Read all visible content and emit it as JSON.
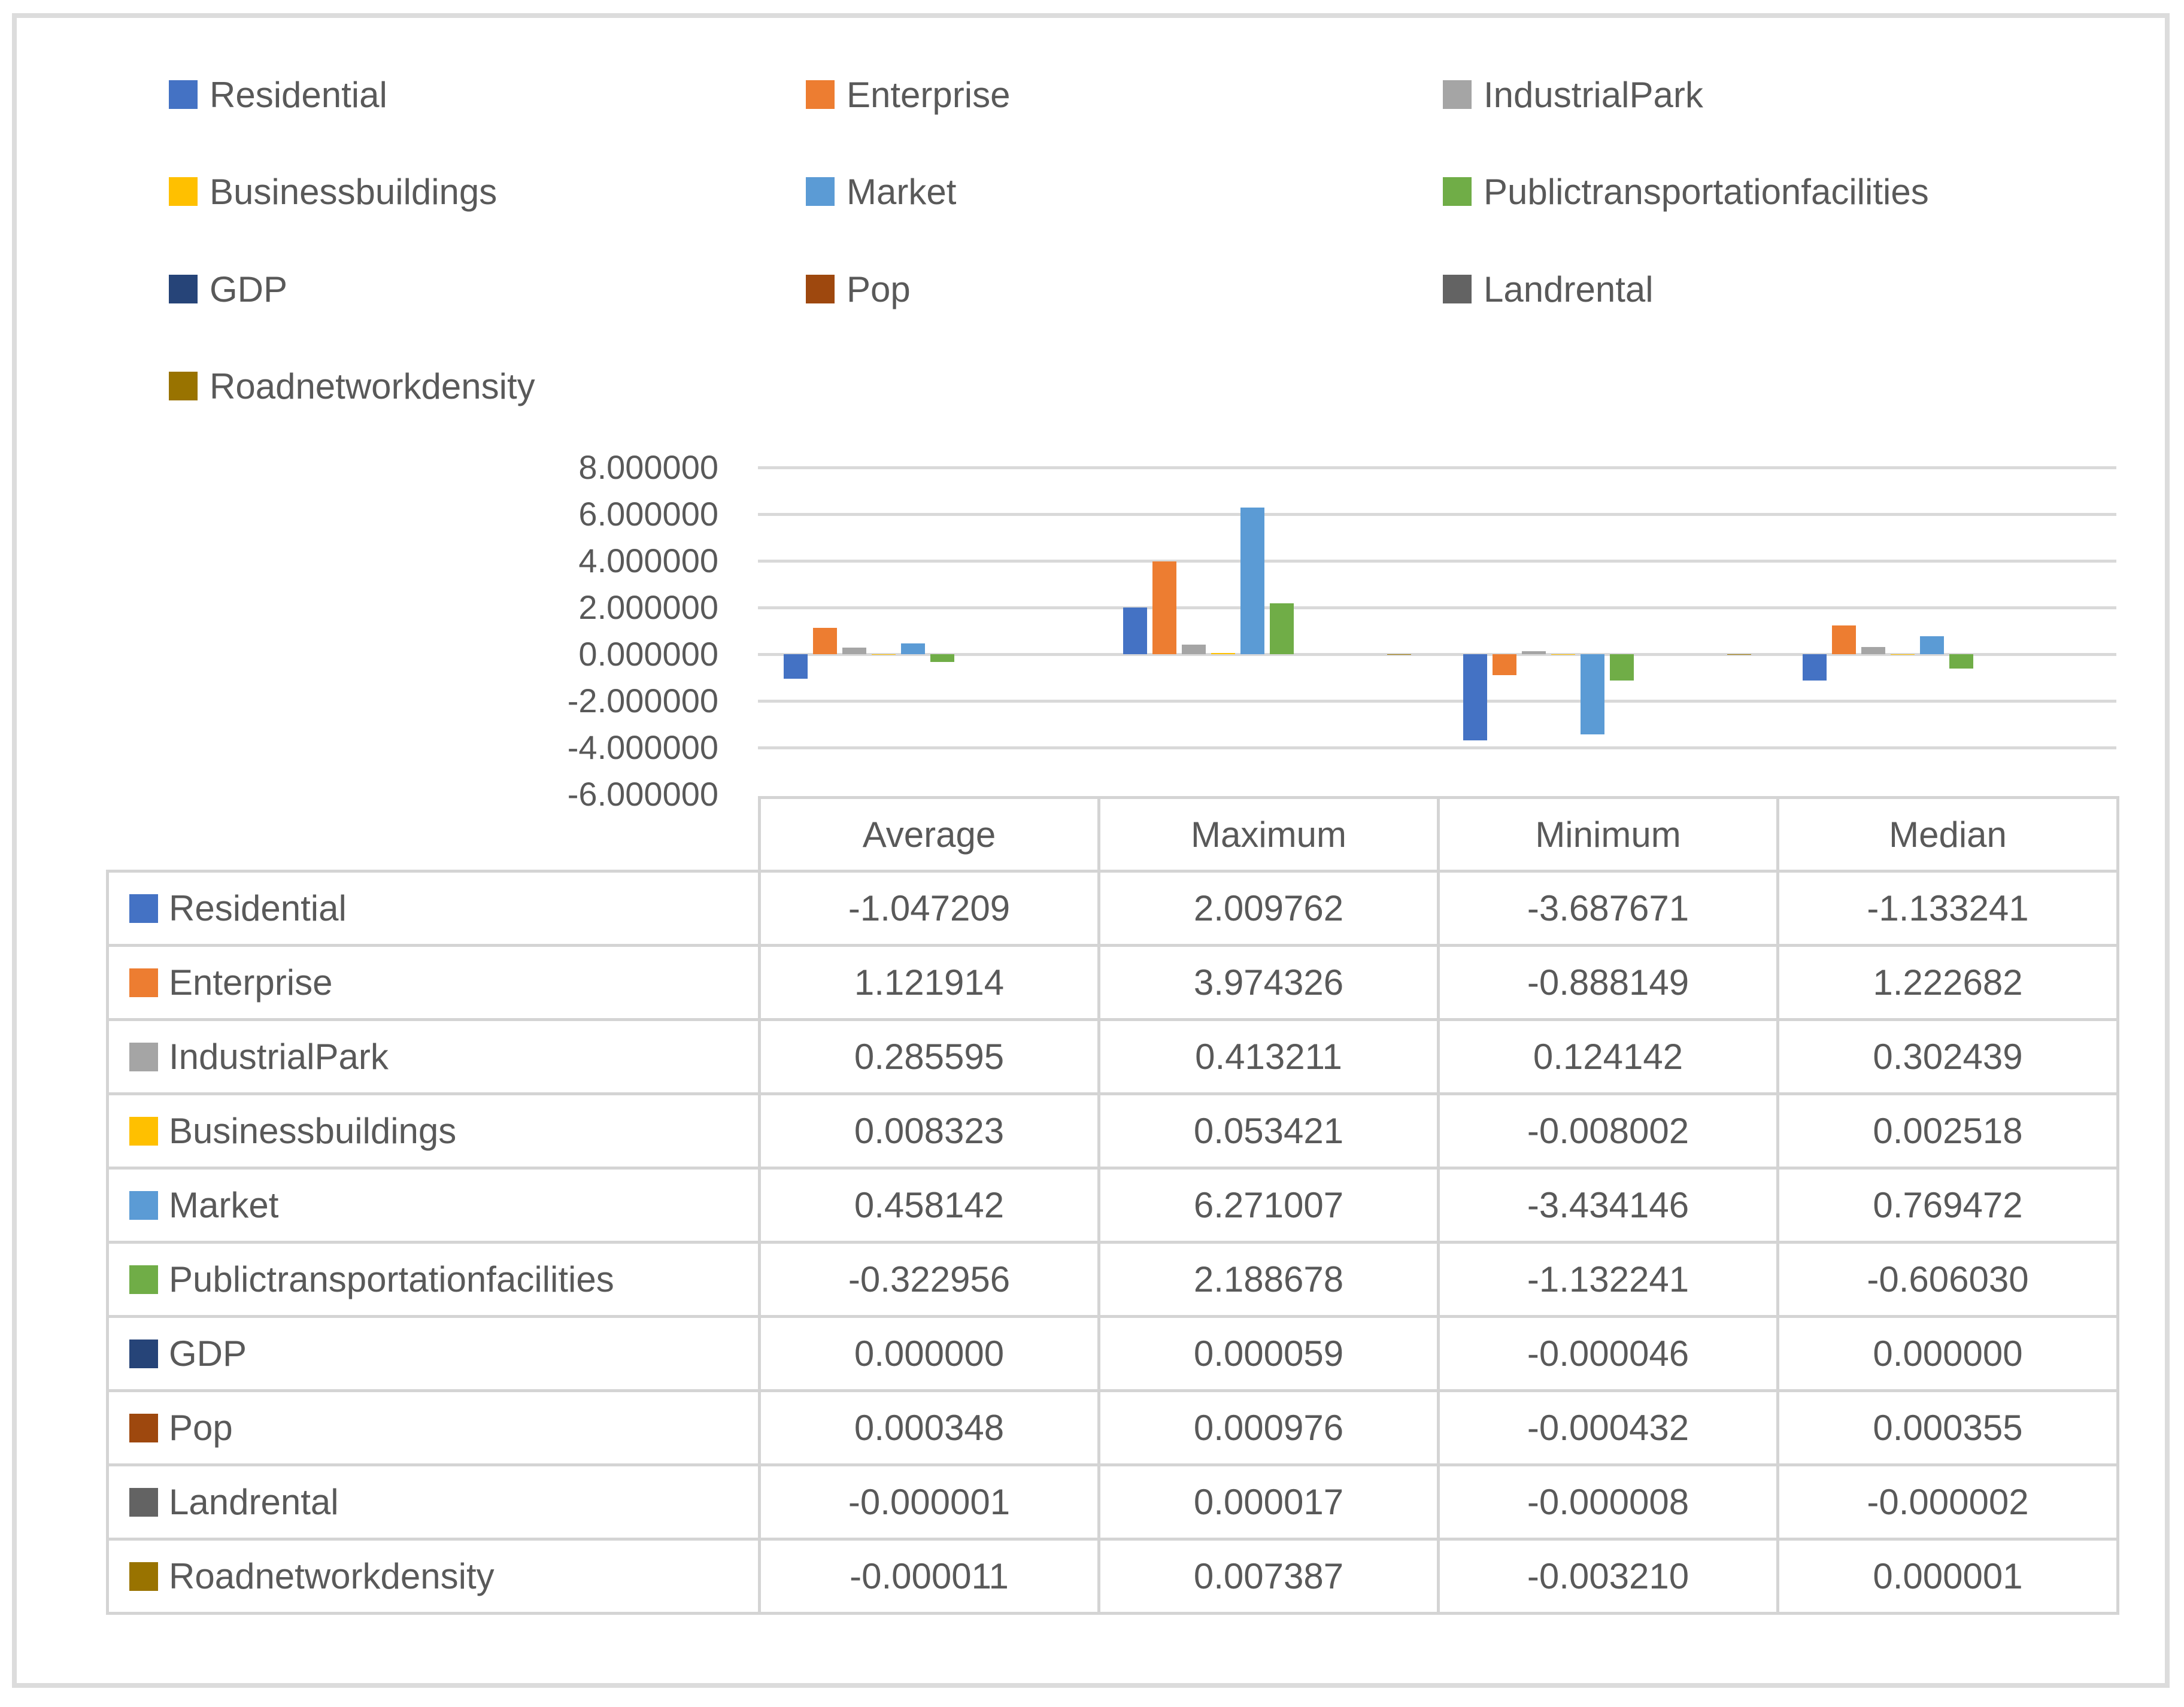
{
  "styles": {
    "text_color": "#595959",
    "gridline_color": "#d9d9d9",
    "table_border_color": "#d4d4d4",
    "frame_border_color": "#dcdcdc",
    "background": "#ffffff"
  },
  "legend": {
    "items": [
      {
        "label": "Residential",
        "color": "#4472C4"
      },
      {
        "label": "Enterprise",
        "color": "#ED7D31"
      },
      {
        "label": "IndustrialPark",
        "color": "#A5A5A5"
      },
      {
        "label": "Businessbuildings",
        "color": "#FFC000"
      },
      {
        "label": "Market",
        "color": "#5B9BD5"
      },
      {
        "label": "Publictransportationfacilities",
        "color": "#70AD47"
      },
      {
        "label": "GDP",
        "color": "#264478"
      },
      {
        "label": "Pop",
        "color": "#9E480E"
      },
      {
        "label": "Landrental",
        "color": "#636363"
      },
      {
        "label": "Roadnetworkdensity",
        "color": "#997300"
      }
    ]
  },
  "chart_data": {
    "type": "bar",
    "categories": [
      "Average",
      "Maximum",
      "Minimum",
      "Median"
    ],
    "series": [
      {
        "name": "Residential",
        "color": "#4472C4",
        "values": [
          -1.047209,
          2.009762,
          -3.687671,
          -1.133241
        ]
      },
      {
        "name": "Enterprise",
        "color": "#ED7D31",
        "values": [
          1.121914,
          3.974326,
          -0.888149,
          1.222682
        ]
      },
      {
        "name": "IndustrialPark",
        "color": "#A5A5A5",
        "values": [
          0.285595,
          0.413211,
          0.124142,
          0.302439
        ]
      },
      {
        "name": "Businessbuildings",
        "color": "#FFC000",
        "values": [
          0.008323,
          0.053421,
          -0.008002,
          0.002518
        ]
      },
      {
        "name": "Market",
        "color": "#5B9BD5",
        "values": [
          0.458142,
          6.271007,
          -3.434146,
          0.769472
        ]
      },
      {
        "name": "Publictransportationfacilities",
        "color": "#70AD47",
        "values": [
          -0.322956,
          2.188678,
          -1.132241,
          -0.60603
        ]
      },
      {
        "name": "GDP",
        "color": "#264478",
        "values": [
          0.0,
          5.9e-05,
          -4.6e-05,
          0.0
        ]
      },
      {
        "name": "Pop",
        "color": "#9E480E",
        "values": [
          0.000348,
          0.000976,
          -0.000432,
          0.000355
        ]
      },
      {
        "name": "Landrental",
        "color": "#636363",
        "values": [
          -1e-06,
          1.7e-05,
          -8e-06,
          -2e-06
        ]
      },
      {
        "name": "Roadnetworkdensity",
        "color": "#997300",
        "values": [
          -1.1e-05,
          0.007387,
          -0.00321,
          1e-06
        ]
      }
    ],
    "title": "",
    "xlabel": "",
    "ylabel": "",
    "ylim": [
      -6,
      8
    ],
    "ytick_step": 2,
    "ytick_decimals": 6,
    "grid": true,
    "legend_position": "top-left"
  },
  "table": {
    "corner_label": "",
    "columns": [
      "Average",
      "Maximum",
      "Minimum",
      "Median"
    ],
    "rows": [
      {
        "label": "Residential",
        "color": "#4472C4",
        "values": [
          "-1.047209",
          "2.009762",
          "-3.687671",
          "-1.133241"
        ]
      },
      {
        "label": "Enterprise",
        "color": "#ED7D31",
        "values": [
          "1.121914",
          "3.974326",
          "-0.888149",
          "1.222682"
        ]
      },
      {
        "label": "IndustrialPark",
        "color": "#A5A5A5",
        "values": [
          "0.285595",
          "0.413211",
          "0.124142",
          "0.302439"
        ]
      },
      {
        "label": "Businessbuildings",
        "color": "#FFC000",
        "values": [
          "0.008323",
          "0.053421",
          "-0.008002",
          "0.002518"
        ]
      },
      {
        "label": "Market",
        "color": "#5B9BD5",
        "values": [
          "0.458142",
          "6.271007",
          "-3.434146",
          "0.769472"
        ]
      },
      {
        "label": "Publictransportationfacilities",
        "color": "#70AD47",
        "values": [
          "-0.322956",
          "2.188678",
          "-1.132241",
          "-0.606030"
        ]
      },
      {
        "label": "GDP",
        "color": "#264478",
        "values": [
          "0.000000",
          "0.000059",
          "-0.000046",
          "0.000000"
        ]
      },
      {
        "label": "Pop",
        "color": "#9E480E",
        "values": [
          "0.000348",
          "0.000976",
          "-0.000432",
          "0.000355"
        ]
      },
      {
        "label": "Landrental",
        "color": "#636363",
        "values": [
          "-0.000001",
          "0.000017",
          "-0.000008",
          "-0.000002"
        ]
      },
      {
        "label": "Roadnetworkdensity",
        "color": "#997300",
        "values": [
          "-0.000011",
          "0.007387",
          "-0.003210",
          "0.000001"
        ]
      }
    ]
  }
}
